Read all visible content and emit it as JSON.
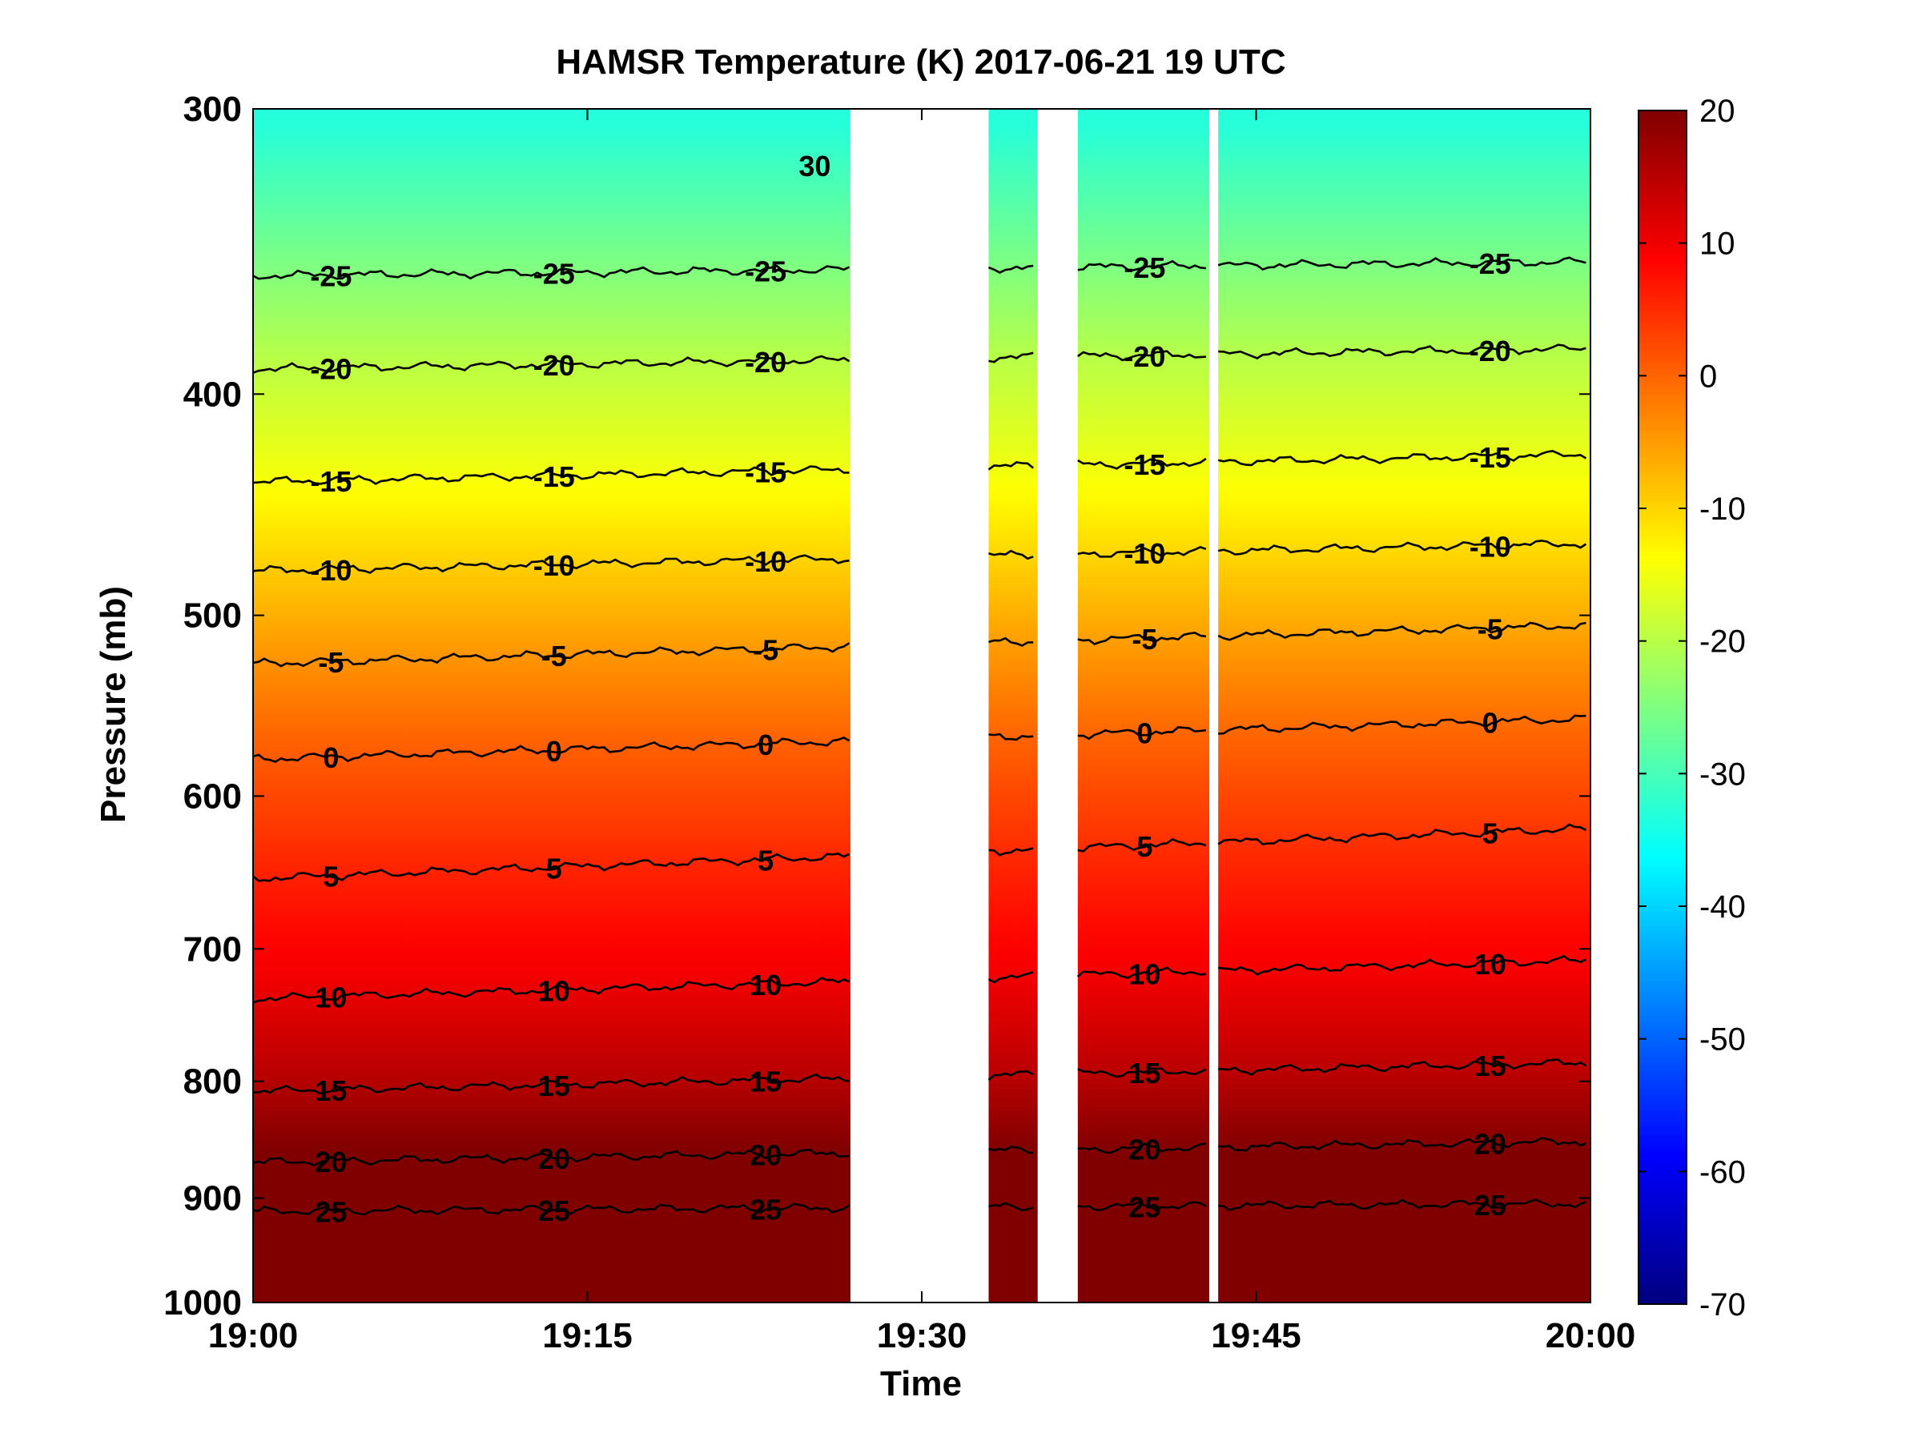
{
  "chart_data": {
    "type": "heatmap",
    "title": "HAMSR  Temperature (K) 2017-06-21 19 UTC",
    "xlabel": "Time",
    "ylabel": "Pressure (mb)",
    "x_ticks": [
      "19:00",
      "19:15",
      "19:30",
      "19:45",
      "20:00"
    ],
    "x_range_minutes": [
      0,
      60
    ],
    "y_ticks": [
      300,
      400,
      500,
      600,
      700,
      800,
      900,
      1000
    ],
    "y_range": [
      300,
      1000
    ],
    "y_scale": "log",
    "y_reversed": true,
    "colorbar": {
      "ticks": [
        20,
        10,
        0,
        -10,
        -20,
        -30,
        -40,
        -50,
        -60,
        -70
      ],
      "range": [
        -70,
        20
      ],
      "colormap": "jet",
      "placement": "right"
    },
    "contour_levels": [
      -30,
      -25,
      -20,
      -15,
      -10,
      -5,
      0,
      5,
      10,
      15,
      20,
      25
    ],
    "contours": [
      {
        "level": -25,
        "label": "-25",
        "pressure_left": 355,
        "pressure_right": 350
      },
      {
        "level": -20,
        "label": "-20",
        "pressure_left": 390,
        "pressure_right": 382
      },
      {
        "level": -15,
        "label": "-15",
        "pressure_left": 437,
        "pressure_right": 425
      },
      {
        "level": -10,
        "label": "-10",
        "pressure_left": 478,
        "pressure_right": 465
      },
      {
        "level": -5,
        "label": "-5",
        "pressure_left": 525,
        "pressure_right": 505
      },
      {
        "level": 0,
        "label": "0",
        "pressure_left": 578,
        "pressure_right": 555
      },
      {
        "level": 5,
        "label": "5",
        "pressure_left": 652,
        "pressure_right": 620
      },
      {
        "level": 10,
        "label": "10",
        "pressure_left": 736,
        "pressure_right": 708
      },
      {
        "level": 15,
        "label": "15",
        "pressure_left": 808,
        "pressure_right": 785
      },
      {
        "level": 20,
        "label": "20",
        "pressure_left": 868,
        "pressure_right": 850
      },
      {
        "level": 25,
        "label": "25",
        "pressure_left": 912,
        "pressure_right": 905
      }
    ],
    "peak_label": {
      "label": "30"
    },
    "data_segments_minutes": [
      [
        0,
        26.8
      ],
      [
        33.0,
        35.2
      ],
      [
        37.0,
        42.9
      ],
      [
        43.3,
        60
      ]
    ],
    "grid": false
  }
}
